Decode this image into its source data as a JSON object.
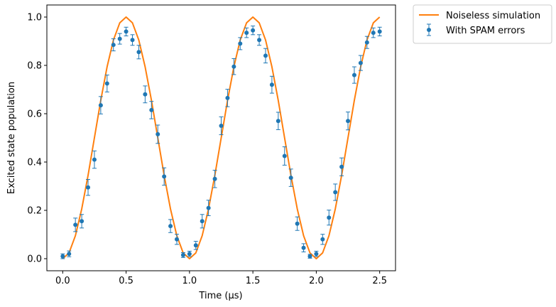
{
  "chart_data": {
    "type": "line",
    "title": "",
    "xlabel": "Time (μs)",
    "ylabel": "Excited state population",
    "xlim": [
      -0.125,
      2.625
    ],
    "ylim": [
      -0.05,
      1.05
    ],
    "xticks": [
      0.0,
      0.5,
      1.0,
      1.5,
      2.0,
      2.5
    ],
    "xtick_labels": [
      "0.0",
      "0.5",
      "1.0",
      "1.5",
      "2.0",
      "2.5"
    ],
    "yticks": [
      0.0,
      0.2,
      0.4,
      0.6,
      0.8,
      1.0
    ],
    "ytick_labels": [
      "0.0",
      "0.2",
      "0.4",
      "0.6",
      "0.8",
      "1.0"
    ],
    "grid": false,
    "legend_position": "outside-top-right",
    "colors": {
      "line": "#ff7f0e",
      "points": "#1f77b4"
    },
    "series": [
      {
        "name": "Noiseless simulation",
        "kind": "line",
        "x": [
          0.0,
          0.05,
          0.1,
          0.15,
          0.2,
          0.25,
          0.3,
          0.35,
          0.4,
          0.45,
          0.5,
          0.55,
          0.6,
          0.65,
          0.7,
          0.75,
          0.8,
          0.85,
          0.9,
          0.95,
          1.0,
          1.05,
          1.1,
          1.15,
          1.2,
          1.25,
          1.3,
          1.35,
          1.4,
          1.45,
          1.5,
          1.55,
          1.6,
          1.65,
          1.7,
          1.75,
          1.8,
          1.85,
          1.9,
          1.95,
          2.0,
          2.05,
          2.1,
          2.15,
          2.2,
          2.25,
          2.3,
          2.35,
          2.4,
          2.45,
          2.5
        ],
        "y": [
          0.0,
          0.024,
          0.095,
          0.206,
          0.345,
          0.5,
          0.655,
          0.794,
          0.905,
          0.976,
          1.0,
          0.976,
          0.905,
          0.794,
          0.655,
          0.5,
          0.345,
          0.206,
          0.095,
          0.024,
          0.0,
          0.024,
          0.095,
          0.206,
          0.345,
          0.5,
          0.655,
          0.794,
          0.905,
          0.976,
          1.0,
          0.976,
          0.905,
          0.794,
          0.655,
          0.5,
          0.345,
          0.206,
          0.095,
          0.024,
          0.0,
          0.024,
          0.095,
          0.206,
          0.345,
          0.5,
          0.655,
          0.794,
          0.905,
          0.976,
          1.0
        ]
      },
      {
        "name": "With SPAM errors",
        "kind": "errorbar",
        "x": [
          0.0,
          0.05,
          0.1,
          0.15,
          0.2,
          0.25,
          0.3,
          0.35,
          0.4,
          0.45,
          0.5,
          0.55,
          0.6,
          0.65,
          0.7,
          0.75,
          0.8,
          0.85,
          0.9,
          0.95,
          1.0,
          1.05,
          1.1,
          1.15,
          1.2,
          1.25,
          1.3,
          1.35,
          1.4,
          1.45,
          1.5,
          1.55,
          1.6,
          1.65,
          1.7,
          1.75,
          1.8,
          1.85,
          1.9,
          1.95,
          2.0,
          2.05,
          2.1,
          2.15,
          2.2,
          2.25,
          2.3,
          2.35,
          2.4,
          2.45,
          2.5
        ],
        "y": [
          0.01,
          0.02,
          0.14,
          0.155,
          0.295,
          0.41,
          0.635,
          0.725,
          0.885,
          0.91,
          0.94,
          0.905,
          0.855,
          0.68,
          0.615,
          0.515,
          0.34,
          0.135,
          0.08,
          0.015,
          0.02,
          0.055,
          0.155,
          0.21,
          0.33,
          0.55,
          0.665,
          0.795,
          0.89,
          0.935,
          0.945,
          0.905,
          0.84,
          0.72,
          0.57,
          0.425,
          0.335,
          0.145,
          0.045,
          0.01,
          0.02,
          0.08,
          0.17,
          0.275,
          0.38,
          0.57,
          0.76,
          0.81,
          0.895,
          0.935,
          0.94
        ],
        "yerr": [
          0.01,
          0.012,
          0.028,
          0.028,
          0.033,
          0.036,
          0.036,
          0.035,
          0.025,
          0.022,
          0.018,
          0.022,
          0.028,
          0.035,
          0.036,
          0.038,
          0.036,
          0.027,
          0.021,
          0.01,
          0.011,
          0.017,
          0.028,
          0.032,
          0.036,
          0.037,
          0.036,
          0.033,
          0.025,
          0.02,
          0.018,
          0.022,
          0.03,
          0.035,
          0.036,
          0.038,
          0.036,
          0.028,
          0.017,
          0.008,
          0.011,
          0.021,
          0.031,
          0.034,
          0.037,
          0.037,
          0.034,
          0.031,
          0.025,
          0.02,
          0.018
        ]
      }
    ]
  }
}
